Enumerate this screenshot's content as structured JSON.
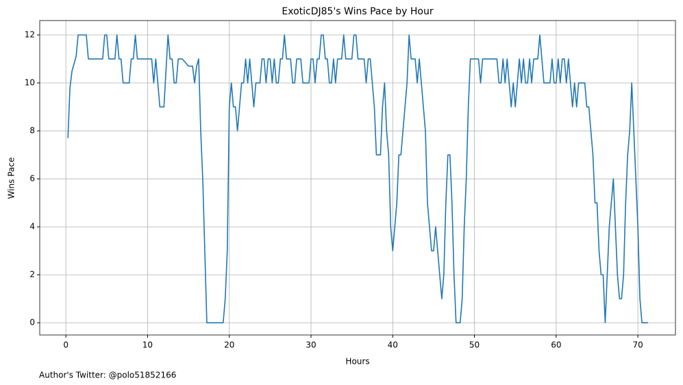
{
  "chart_data": {
    "type": "line",
    "title": "ExoticDJ85's Wins Pace by Hour",
    "xlabel": "Hours",
    "ylabel": "Wins Pace",
    "footnote": "Author's Twitter: @polo51852166",
    "x": [
      0.25,
      0.5,
      0.75,
      1,
      1.25,
      1.5,
      2,
      2.5,
      2.75,
      3,
      4.5,
      4.75,
      5,
      5.25,
      6,
      6.25,
      6.5,
      6.75,
      7,
      7.75,
      8,
      8.25,
      8.5,
      8.75,
      10.5,
      10.75,
      11,
      11.5,
      12,
      12.25,
      12.5,
      12.75,
      13,
      13.25,
      13.5,
      13.75,
      14.25,
      15,
      15.5,
      15.75,
      16,
      16.25,
      16.5,
      16.75,
      17,
      17.25,
      19.25,
      19.5,
      19.75,
      20,
      20.25,
      20.5,
      20.75,
      21,
      21.25,
      21.5,
      21.75,
      22,
      22.25,
      22.5,
      22.75,
      23,
      23.25,
      23.75,
      24,
      24.25,
      24.5,
      24.75,
      25,
      25.25,
      25.5,
      25.75,
      26,
      26.25,
      26.5,
      26.75,
      27,
      27.5,
      27.75,
      28,
      28.25,
      28.75,
      29,
      29.75,
      30,
      30.25,
      30.5,
      30.75,
      31,
      31.25,
      31.5,
      31.75,
      32,
      32.25,
      32.5,
      32.75,
      33,
      33.25,
      33.75,
      34,
      34.25,
      35,
      35.25,
      35.5,
      35.75,
      36.5,
      36.75,
      37,
      37.25,
      37.5,
      37.75,
      38,
      38.5,
      38.75,
      39,
      39.25,
      39.5,
      39.75,
      40,
      40.25,
      40.5,
      40.75,
      41,
      41.25,
      41.5,
      41.75,
      42,
      42.25,
      42.75,
      43,
      43.25,
      43.5,
      43.75,
      44,
      44.25,
      44.5,
      44.75,
      45,
      45.25,
      45.5,
      45.75,
      46,
      46.25,
      46.5,
      46.75,
      47,
      47.25,
      47.5,
      47.75,
      48.25,
      48.5,
      48.75,
      49,
      49.25,
      49.5,
      50.5,
      50.75,
      51,
      52.75,
      53,
      53.25,
      53.5,
      53.75,
      54,
      54.25,
      54.5,
      54.75,
      55,
      55.25,
      55.5,
      55.75,
      56,
      56.25,
      56.5,
      56.75,
      57,
      57.25,
      57.75,
      58,
      58.25,
      58.5,
      59.25,
      59.5,
      59.75,
      60,
      60.25,
      60.5,
      60.75,
      61,
      61.25,
      61.5,
      61.75,
      62,
      62.25,
      62.5,
      62.75,
      63.5,
      63.75,
      64,
      64.25,
      64.5,
      64.75,
      65,
      65.25,
      65.5,
      65.75,
      66,
      66.25,
      66.5,
      66.75,
      67,
      67.25,
      67.5,
      67.75,
      68,
      68.25,
      68.5,
      68.75,
      69,
      69.25,
      69.5,
      69.75,
      70,
      70.25,
      70.5,
      71.25
    ],
    "series": [
      {
        "color": "#1f77b4",
        "values": [
          7.7,
          9.8,
          10.5,
          10.8,
          11.1,
          12,
          12,
          12,
          11,
          11,
          11,
          12,
          12,
          11,
          11,
          12,
          11,
          11,
          10,
          10,
          11,
          11,
          12,
          11,
          11,
          10,
          11,
          9,
          9,
          10.5,
          12,
          11,
          11,
          10,
          10,
          11,
          11,
          10.7,
          10.7,
          10,
          10.7,
          11,
          8,
          6,
          3,
          0,
          0,
          1,
          3,
          9,
          10,
          9,
          9,
          8,
          9,
          10,
          10,
          11,
          10,
          11,
          10,
          9,
          10,
          10,
          11,
          11,
          10,
          11,
          11,
          10,
          11,
          10,
          10,
          11,
          11,
          12,
          11,
          11,
          10,
          10,
          11,
          11,
          10,
          10,
          11,
          11,
          10,
          11,
          11,
          12,
          12,
          11,
          11,
          10,
          10,
          11,
          10,
          11,
          11,
          12,
          11,
          11,
          12,
          12,
          11,
          11,
          10,
          11,
          11,
          10,
          9,
          7,
          7,
          9,
          10,
          8,
          7,
          4,
          3,
          4,
          5,
          7,
          7,
          8,
          9,
          10,
          12,
          11,
          11,
          10,
          11,
          10,
          9,
          8,
          5,
          4,
          3,
          3,
          4,
          3,
          2,
          1,
          2,
          5,
          7,
          7,
          5,
          2,
          0,
          0,
          1,
          4,
          6,
          9,
          11,
          11,
          10,
          11,
          11,
          10,
          10,
          11,
          10,
          11,
          10,
          9,
          10,
          9,
          10,
          11,
          10,
          11,
          10,
          10,
          11,
          10,
          11,
          11,
          12,
          11,
          10,
          10,
          11,
          10,
          10,
          11,
          10,
          11,
          11,
          10,
          11,
          10,
          9,
          10,
          9,
          10,
          10,
          9,
          9,
          8,
          7,
          5,
          5,
          3,
          2,
          2,
          0,
          2,
          4,
          5,
          6,
          4,
          2,
          1,
          1,
          2,
          5,
          7,
          8,
          10,
          8,
          6,
          4,
          1,
          0,
          0
        ]
      }
    ],
    "xlim": [
      -3.2,
      74.6
    ],
    "ylim": [
      -0.51,
      12.6
    ],
    "xticks": [
      0,
      10,
      20,
      30,
      40,
      50,
      60,
      70
    ],
    "yticks": [
      0,
      2,
      4,
      6,
      8,
      10,
      12
    ],
    "grid": true
  }
}
